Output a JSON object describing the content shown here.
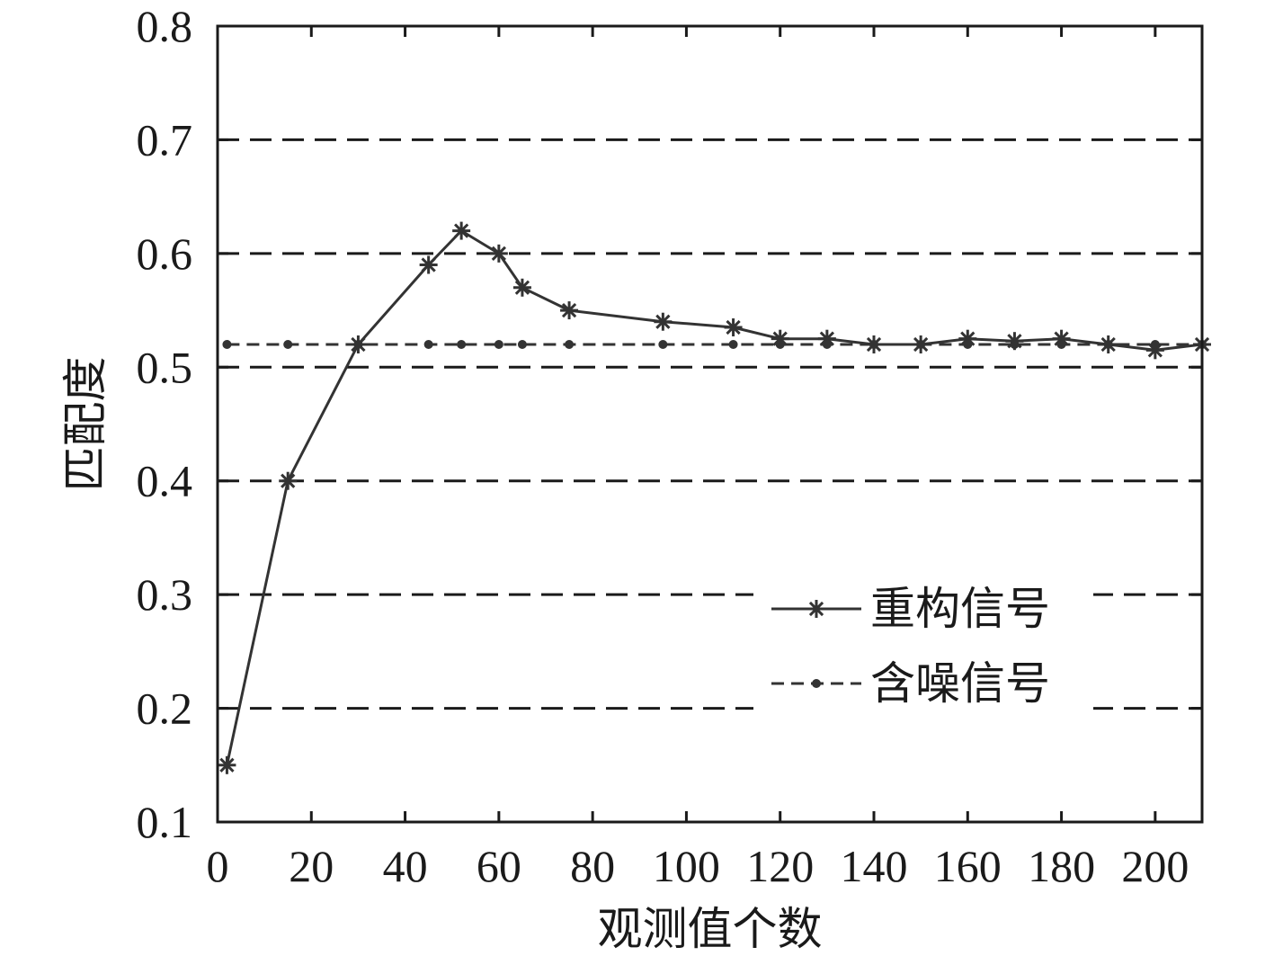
{
  "chart_data": {
    "type": "line",
    "xlabel": "观测值个数",
    "ylabel": "匹配度",
    "xlim": [
      0,
      210
    ],
    "ylim": [
      0.1,
      0.8
    ],
    "xticks": [
      0,
      20,
      40,
      60,
      80,
      100,
      120,
      140,
      160,
      180,
      200
    ],
    "yticks": [
      0.1,
      0.2,
      0.3,
      0.4,
      0.5,
      0.6,
      0.7,
      0.8
    ],
    "ytick_labels": [
      "0.1",
      "0.2",
      "0.3",
      "0.4",
      "0.5",
      "0.6",
      "0.7",
      "0.8"
    ],
    "grid": "horizontal dashed",
    "legend_position": "lower-right",
    "series": [
      {
        "name": "重构信号",
        "line_style": "solid",
        "marker": "asterisk",
        "color": "#333333",
        "x": [
          2,
          15,
          30,
          45,
          52,
          60,
          65,
          75,
          95,
          110,
          120,
          130,
          140,
          150,
          160,
          170,
          180,
          190,
          200,
          210
        ],
        "y": [
          0.15,
          0.4,
          0.52,
          0.59,
          0.62,
          0.6,
          0.57,
          0.55,
          0.54,
          0.535,
          0.525,
          0.525,
          0.52,
          0.52,
          0.525,
          0.523,
          0.525,
          0.52,
          0.515,
          0.52
        ]
      },
      {
        "name": "含噪信号",
        "line_style": "dashed",
        "marker": "dot",
        "color": "#333333",
        "x": [
          2,
          15,
          30,
          45,
          52,
          60,
          65,
          75,
          95,
          110,
          120,
          130,
          140,
          150,
          160,
          170,
          180,
          190,
          200,
          210
        ],
        "y": [
          0.52,
          0.52,
          0.52,
          0.52,
          0.52,
          0.52,
          0.52,
          0.52,
          0.52,
          0.52,
          0.52,
          0.52,
          0.52,
          0.52,
          0.52,
          0.52,
          0.52,
          0.52,
          0.52,
          0.52
        ]
      }
    ]
  }
}
